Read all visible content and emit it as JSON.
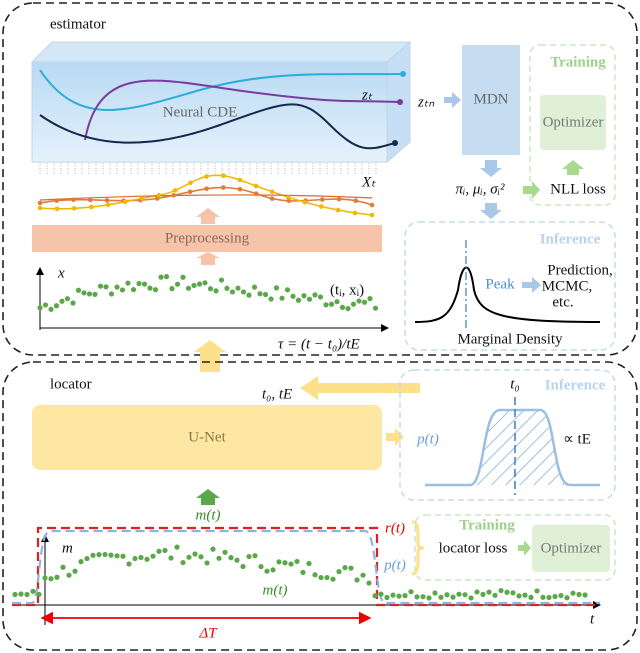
{
  "estimator": {
    "title": "estimator",
    "neural_cde": "Neural CDE",
    "z_t": "zₜ",
    "z_tn": "zₜₙ",
    "mdn": "MDN",
    "training": "Training",
    "optimizer": "Optimizer",
    "x_t": "Xₜ",
    "params": "πᵢ, μᵢ, σᵢ²",
    "nll_loss": "NLL loss",
    "preprocessing": "Preprocessing",
    "inference": "Inference",
    "peak": "Peak",
    "outputs": [
      "Prediction,",
      "MCMC,",
      "etc."
    ],
    "marginal_density": "Marginal Density",
    "axis_x": "x",
    "point_label": "(tᵢ, xᵢ)",
    "tau": "τ = (t − t₀)/tE"
  },
  "locator": {
    "title": "locator",
    "t0_te": "t₀, tE",
    "inference": "Inference",
    "t0": "t₀",
    "unet": "U-Net",
    "p_t": "p(t)",
    "prop_te": "∝ tE",
    "m_t_input": "m(t)",
    "training": "Training",
    "r_t": "r(t)",
    "p_t_loss": "p(t)",
    "locator_loss": "locator loss",
    "optimizer": "Optimizer",
    "axis_m": "m",
    "m_t_curve": "m(t)",
    "delta_t": "ΔT",
    "axis_t": "t"
  }
}
